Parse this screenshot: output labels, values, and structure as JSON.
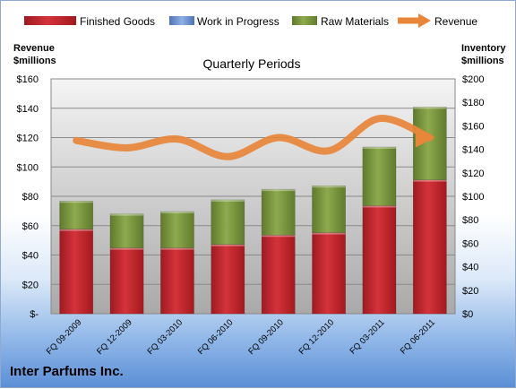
{
  "chart_data": {
    "type": "bar",
    "title": "Quarterly Periods",
    "company": "Inter Parfums Inc.",
    "categories": [
      "FQ 09-2009",
      "FQ 12-2009",
      "FQ 03-2010",
      "FQ 06-2010",
      "FQ 09-2010",
      "FQ 12-2010",
      "FQ 03-2011",
      "FQ 06-2011"
    ],
    "series": [
      {
        "name": "Finished Goods",
        "kind": "stacked-bar",
        "axis": "inventory",
        "color": "#c0202a",
        "values": [
          72,
          56,
          56,
          59,
          67,
          69,
          92,
          114
        ]
      },
      {
        "name": "Work in Progress",
        "kind": "stacked-bar",
        "axis": "inventory",
        "color": "#6b8fd0",
        "values": [
          0,
          0,
          0,
          0,
          0,
          0,
          0,
          0
        ]
      },
      {
        "name": "Raw Materials",
        "kind": "stacked-bar",
        "axis": "inventory",
        "color": "#77933c",
        "values": [
          24,
          29,
          31,
          38,
          39,
          40,
          50,
          62
        ]
      },
      {
        "name": "Revenue",
        "kind": "line",
        "axis": "revenue",
        "color": "#e8863a",
        "values": [
          118,
          113,
          119,
          107,
          120,
          111,
          133,
          120
        ]
      }
    ],
    "left_axis": {
      "label_line1": "Revenue",
      "label_line2": "$millions",
      "min": 0,
      "max": 160,
      "step": 20,
      "ticks": [
        "$-",
        "$20",
        "$40",
        "$60",
        "$80",
        "$100",
        "$120",
        "$140",
        "$160"
      ]
    },
    "right_axis": {
      "label_line1": "Inventory",
      "label_line2": "$millions",
      "min": 0,
      "max": 200,
      "step": 20,
      "ticks": [
        "$0",
        "$20",
        "$40",
        "$60",
        "$80",
        "$100",
        "$120",
        "$140",
        "$160",
        "$180",
        "$200"
      ]
    },
    "grid": true,
    "legend_position": "top"
  }
}
